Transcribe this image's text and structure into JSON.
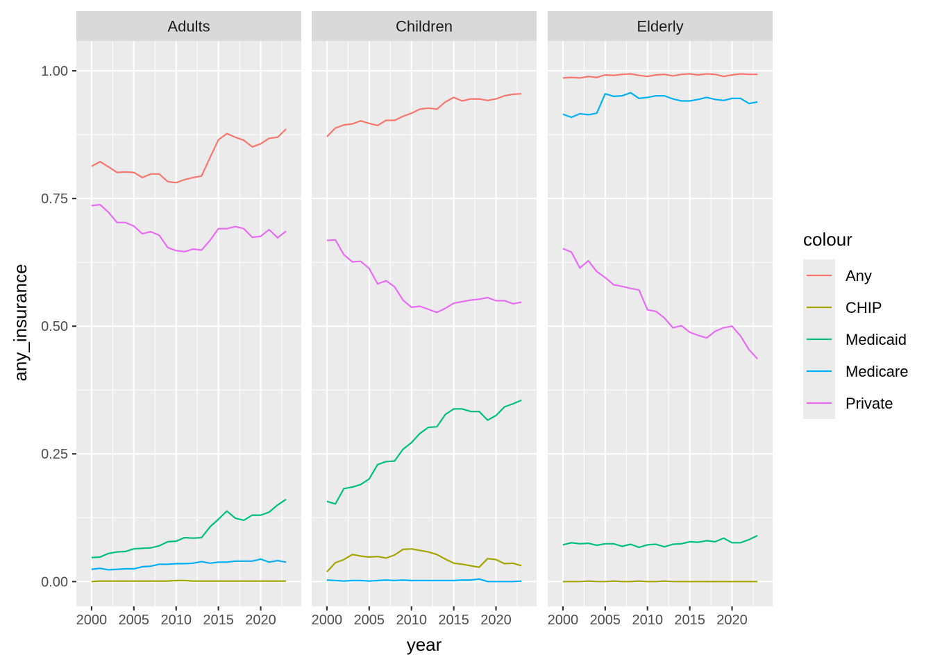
{
  "chart_data": {
    "type": "line",
    "xlabel": "year",
    "ylabel": "any_insurance",
    "xlim": [
      1998.2,
      2024.8
    ],
    "ylim": [
      -0.0485,
      1.0585
    ],
    "x_ticks": [
      2000,
      2005,
      2010,
      2015,
      2020
    ],
    "x_tick_labels": [
      "2000",
      "2005",
      "2010",
      "2015",
      "2020"
    ],
    "y_ticks": [
      0,
      0.25,
      0.5,
      0.75,
      1
    ],
    "y_tick_labels": [
      "0.00",
      "0.25",
      "0.50",
      "0.75",
      "1.00"
    ],
    "legend_title": "colour",
    "legend_position": "right",
    "colors": {
      "Any": "#F8766D",
      "CHIP": "#A3A500",
      "Medicaid": "#00BF7D",
      "Medicare": "#00B0F6",
      "Private": "#E76BF3"
    },
    "legend_order": [
      "Any",
      "CHIP",
      "Medicaid",
      "Medicare",
      "Private"
    ],
    "years": [
      2000,
      2001,
      2002,
      2003,
      2004,
      2005,
      2006,
      2007,
      2008,
      2009,
      2010,
      2011,
      2012,
      2013,
      2014,
      2015,
      2016,
      2017,
      2018,
      2019,
      2020,
      2021,
      2022,
      2023
    ],
    "panels": [
      {
        "strip": "Adults",
        "series": [
          {
            "name": "Any",
            "values": [
              0.813,
              0.822,
              0.812,
              0.801,
              0.802,
              0.801,
              0.791,
              0.798,
              0.798,
              0.783,
              0.781,
              0.787,
              0.791,
              0.794,
              0.83,
              0.865,
              0.877,
              0.87,
              0.864,
              0.851,
              0.857,
              0.868,
              0.87,
              0.886
            ]
          },
          {
            "name": "CHIP",
            "values": [
              0.0,
              0.001,
              0.001,
              0.001,
              0.001,
              0.001,
              0.001,
              0.001,
              0.001,
              0.001,
              0.002,
              0.002,
              0.001,
              0.001,
              0.001,
              0.001,
              0.001,
              0.001,
              0.001,
              0.001,
              0.001,
              0.001,
              0.001,
              0.001
            ]
          },
          {
            "name": "Medicaid",
            "values": [
              0.047,
              0.048,
              0.055,
              0.058,
              0.059,
              0.064,
              0.065,
              0.066,
              0.07,
              0.078,
              0.079,
              0.086,
              0.085,
              0.086,
              0.107,
              0.122,
              0.138,
              0.124,
              0.12,
              0.13,
              0.13,
              0.136,
              0.15,
              0.161
            ]
          },
          {
            "name": "Medicare",
            "values": [
              0.024,
              0.026,
              0.023,
              0.024,
              0.025,
              0.025,
              0.029,
              0.03,
              0.034,
              0.034,
              0.035,
              0.035,
              0.036,
              0.039,
              0.036,
              0.038,
              0.038,
              0.04,
              0.04,
              0.04,
              0.044,
              0.038,
              0.041,
              0.038
            ]
          },
          {
            "name": "Private",
            "values": [
              0.736,
              0.738,
              0.723,
              0.703,
              0.703,
              0.696,
              0.681,
              0.685,
              0.678,
              0.654,
              0.648,
              0.646,
              0.651,
              0.649,
              0.668,
              0.691,
              0.691,
              0.695,
              0.691,
              0.674,
              0.676,
              0.689,
              0.673,
              0.686
            ]
          }
        ]
      },
      {
        "strip": "Children",
        "series": [
          {
            "name": "Any",
            "values": [
              0.871,
              0.888,
              0.894,
              0.896,
              0.902,
              0.897,
              0.893,
              0.903,
              0.903,
              0.911,
              0.917,
              0.925,
              0.927,
              0.925,
              0.939,
              0.948,
              0.941,
              0.945,
              0.945,
              0.942,
              0.945,
              0.951,
              0.954,
              0.955
            ]
          },
          {
            "name": "CHIP",
            "values": [
              0.019,
              0.037,
              0.043,
              0.053,
              0.05,
              0.048,
              0.049,
              0.046,
              0.052,
              0.063,
              0.064,
              0.061,
              0.058,
              0.053,
              0.044,
              0.036,
              0.034,
              0.031,
              0.028,
              0.045,
              0.043,
              0.035,
              0.036,
              0.031
            ]
          },
          {
            "name": "Medicaid",
            "values": [
              0.157,
              0.152,
              0.182,
              0.185,
              0.19,
              0.201,
              0.229,
              0.235,
              0.236,
              0.259,
              0.272,
              0.29,
              0.302,
              0.303,
              0.327,
              0.338,
              0.338,
              0.333,
              0.333,
              0.316,
              0.325,
              0.342,
              0.348,
              0.355
            ]
          },
          {
            "name": "Medicare",
            "values": [
              0.003,
              0.002,
              0.001,
              0.002,
              0.002,
              0.001,
              0.002,
              0.003,
              0.002,
              0.003,
              0.002,
              0.002,
              0.002,
              0.002,
              0.002,
              0.002,
              0.003,
              0.003,
              0.005,
              0.0,
              0.0,
              0.0,
              0.0,
              0.001
            ]
          },
          {
            "name": "Private",
            "values": [
              0.668,
              0.669,
              0.64,
              0.626,
              0.627,
              0.613,
              0.583,
              0.589,
              0.577,
              0.551,
              0.537,
              0.539,
              0.533,
              0.527,
              0.535,
              0.545,
              0.548,
              0.551,
              0.553,
              0.556,
              0.55,
              0.55,
              0.544,
              0.547
            ]
          }
        ]
      },
      {
        "strip": "Elderly",
        "series": [
          {
            "name": "Any",
            "values": [
              0.986,
              0.987,
              0.986,
              0.989,
              0.987,
              0.992,
              0.991,
              0.993,
              0.994,
              0.991,
              0.989,
              0.992,
              0.993,
              0.99,
              0.993,
              0.994,
              0.992,
              0.994,
              0.993,
              0.989,
              0.992,
              0.994,
              0.993,
              0.993
            ]
          },
          {
            "name": "CHIP",
            "values": [
              0.0,
              0.0,
              0.0,
              0.001,
              0.0,
              0.0,
              0.001,
              0.0,
              0.0,
              0.001,
              0.0,
              0.0,
              0.001,
              0.0,
              0.0,
              0.0,
              0.0,
              0.0,
              0.0,
              0.0,
              0.0,
              0.0,
              0.0,
              0.0
            ]
          },
          {
            "name": "Medicaid",
            "values": [
              0.072,
              0.076,
              0.074,
              0.075,
              0.071,
              0.074,
              0.074,
              0.069,
              0.073,
              0.067,
              0.072,
              0.073,
              0.068,
              0.073,
              0.074,
              0.078,
              0.077,
              0.08,
              0.078,
              0.085,
              0.076,
              0.076,
              0.082,
              0.09
            ]
          },
          {
            "name": "Medicare",
            "values": [
              0.915,
              0.909,
              0.916,
              0.914,
              0.917,
              0.955,
              0.95,
              0.951,
              0.957,
              0.946,
              0.948,
              0.951,
              0.951,
              0.945,
              0.941,
              0.941,
              0.944,
              0.948,
              0.944,
              0.942,
              0.946,
              0.946,
              0.936,
              0.939
            ]
          },
          {
            "name": "Private",
            "values": [
              0.652,
              0.645,
              0.614,
              0.628,
              0.607,
              0.595,
              0.581,
              0.578,
              0.574,
              0.571,
              0.532,
              0.529,
              0.516,
              0.497,
              0.501,
              0.488,
              0.482,
              0.477,
              0.49,
              0.497,
              0.5,
              0.481,
              0.454,
              0.436
            ]
          }
        ]
      }
    ]
  }
}
